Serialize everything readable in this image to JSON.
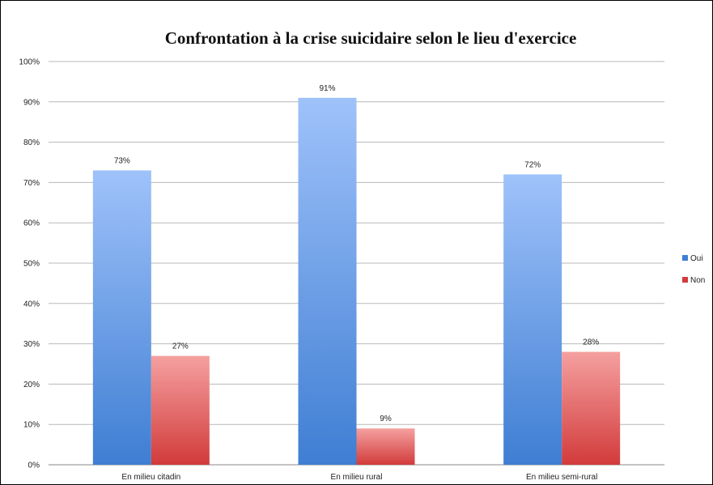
{
  "chart_data": {
    "type": "bar",
    "title": "Confrontation à la crise suicidaire selon le lieu d'exercice",
    "xlabel": "",
    "ylabel": "",
    "categories": [
      "En milieu citadin",
      "En milieu rural",
      "En milieu semi-rural"
    ],
    "series": [
      {
        "name": "Oui",
        "values": [
          73,
          91,
          72
        ],
        "labels": [
          "73%",
          "91%",
          "72%"
        ],
        "color_top": "#9fc2fa",
        "color_bottom": "#3f7ed3"
      },
      {
        "name": "Non",
        "values": [
          27,
          9,
          28
        ],
        "labels": [
          "27%",
          "9%",
          "28%"
        ],
        "color_top": "#f5a0a0",
        "color_bottom": "#d23b3b"
      }
    ],
    "ylim": [
      0,
      100
    ],
    "y_ticks": [
      0,
      10,
      20,
      30,
      40,
      50,
      60,
      70,
      80,
      90,
      100
    ],
    "y_tick_labels": [
      "0%",
      "10%",
      "20%",
      "30%",
      "40%",
      "50%",
      "60%",
      "70%",
      "80%",
      "90%",
      "100%"
    ],
    "grid": true,
    "legend_position": "right"
  }
}
